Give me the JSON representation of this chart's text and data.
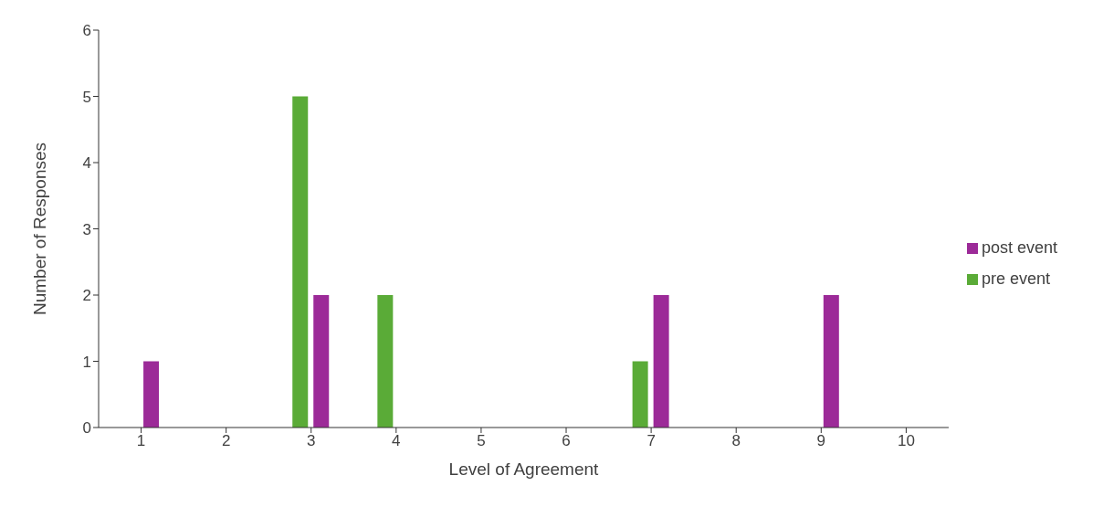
{
  "chart_data": {
    "type": "bar",
    "xlabel": "Level of Agreement",
    "ylabel": "Number of Responses",
    "categories": [
      "1",
      "2",
      "3",
      "4",
      "5",
      "6",
      "7",
      "8",
      "9",
      "10"
    ],
    "series": [
      {
        "name": "pre event",
        "color": "#5aab37",
        "values": [
          0,
          0,
          5,
          2,
          0,
          0,
          1,
          0,
          0,
          0
        ]
      },
      {
        "name": "post event",
        "color": "#9c2a98",
        "values": [
          1,
          0,
          2,
          0,
          0,
          0,
          2,
          0,
          2,
          0
        ]
      }
    ],
    "ylim": [
      0,
      6
    ],
    "yticks": [
      0,
      1,
      2,
      3,
      4,
      5,
      6
    ],
    "grid": false,
    "legend": "right"
  }
}
